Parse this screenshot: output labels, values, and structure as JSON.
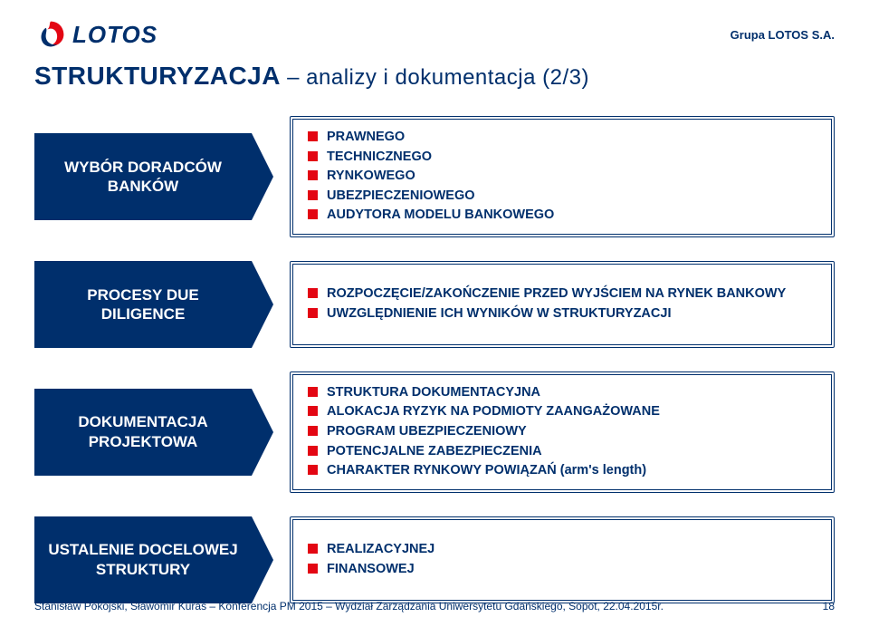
{
  "colors": {
    "brand_red": "#e30613",
    "brand_navy": "#002f6c",
    "blue_border": "#002f6c",
    "text_navy": "#002f6c",
    "bullet_red": "#e30613"
  },
  "header": {
    "logo_text": "LOTOS",
    "corp": "Grupa LOTOS S.A."
  },
  "title_main": "STRUKTURYZACJA",
  "title_rest": " – analizy i dokumentacja ",
  "title_suffix": "(2/3)",
  "rows": [
    {
      "left": "WYBÓR DORADCÓW BANKÓW",
      "bullets": [
        "PRAWNEGO",
        "TECHNICZNEGO",
        "RYNKOWEGO",
        "UBEZPIECZENIOWEGO",
        "AUDYTORA MODELU BANKOWEGO"
      ]
    },
    {
      "left": "PROCESY DUE DILIGENCE",
      "bullets": [
        "ROZPOCZĘCIE/ZAKOŃCZENIE PRZED WYJŚCIEM NA RYNEK BANKOWY",
        "UWZGLĘDNIENIE ICH WYNIKÓW W STRUKTURYZACJI"
      ]
    },
    {
      "left": "DOKUMENTACJA PROJEKTOWA",
      "bullets": [
        "STRUKTURA DOKUMENTACYJNA",
        "ALOKACJA RYZYK NA PODMIOTY ZAANGAŻOWANE",
        "PROGRAM UBEZPIECZENIOWY",
        "POTENCJALNE ZABEZPIECZENIA",
        "CHARAKTER RYNKOWY POWIĄZAŃ (arm's length)"
      ]
    },
    {
      "left": "USTALENIE DOCELOWEJ STRUKTURY",
      "bullets": [
        "REALIZACYJNEJ",
        "FINANSOWEJ"
      ]
    }
  ],
  "footer": {
    "text": "Stanisław Pokojski, Sławomir Kuras – Konferencja PM 2015 – Wydział Zarządzania Uniwersytetu Gdańskiego, Sopot, 22.04.2015r.",
    "page": "18"
  }
}
